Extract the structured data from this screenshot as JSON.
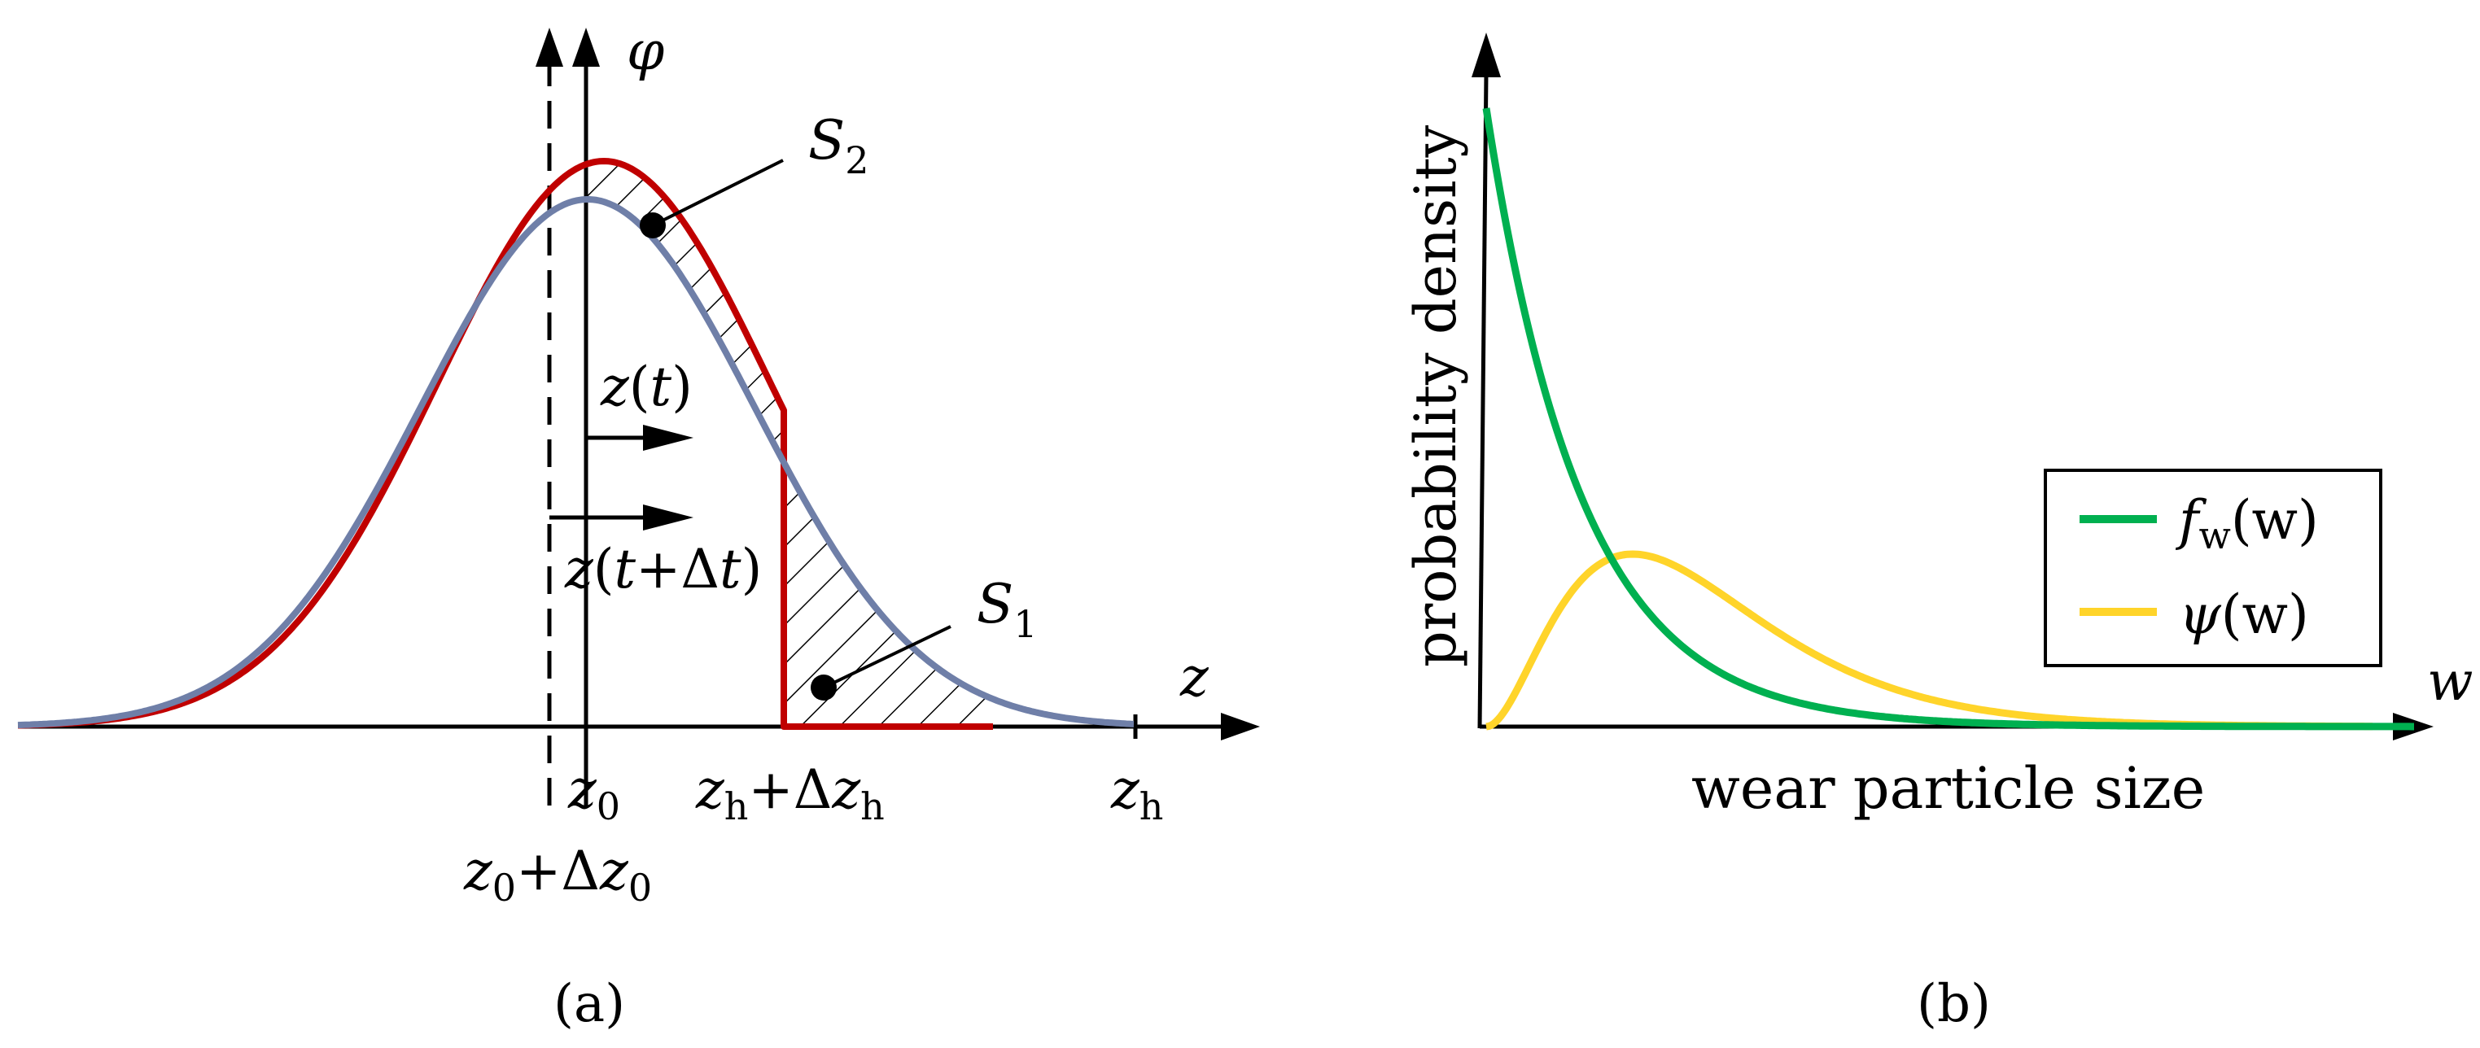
{
  "panel_a": {
    "caption": "(a)",
    "axis_labels": {
      "vertical": "φ",
      "horizontal": "z"
    },
    "ticks": {
      "z0": {
        "base": "z",
        "sub": "0"
      },
      "z0_shift": {
        "base": "z",
        "sub": "0",
        "op": "+Δ",
        "base2": "z",
        "sub2": "0"
      },
      "zh_shift": {
        "base": "z",
        "sub": "h",
        "op": "+Δ",
        "base2": "z",
        "sub2": "h"
      },
      "zh": {
        "base": "z",
        "sub": "h"
      }
    },
    "annotations": {
      "s1": {
        "base": "S",
        "sub": "1"
      },
      "s2": {
        "base": "S",
        "sub": "2"
      },
      "zt": {
        "a": "z",
        "b": "(",
        "c": "t",
        "d": ")"
      },
      "ztdt": {
        "a": "z",
        "b": "(",
        "c": "t",
        "d": "+Δ",
        "e": "t",
        "f": ")"
      }
    },
    "curve_colors": {
      "shifted_curve": "#c00000",
      "original_curve": "#6f7fa8"
    }
  },
  "panel_b": {
    "caption": "(b)",
    "axis_labels": {
      "y": "probability density",
      "x": "wear particle size",
      "x_symbol": "w"
    },
    "legend": [
      {
        "symbol": "f",
        "sub": "w",
        "arg": "(w)",
        "color": "#00b050"
      },
      {
        "symbol": "ψ",
        "sub": "",
        "arg": "(w)",
        "color": "#ffd42a"
      }
    ]
  }
}
